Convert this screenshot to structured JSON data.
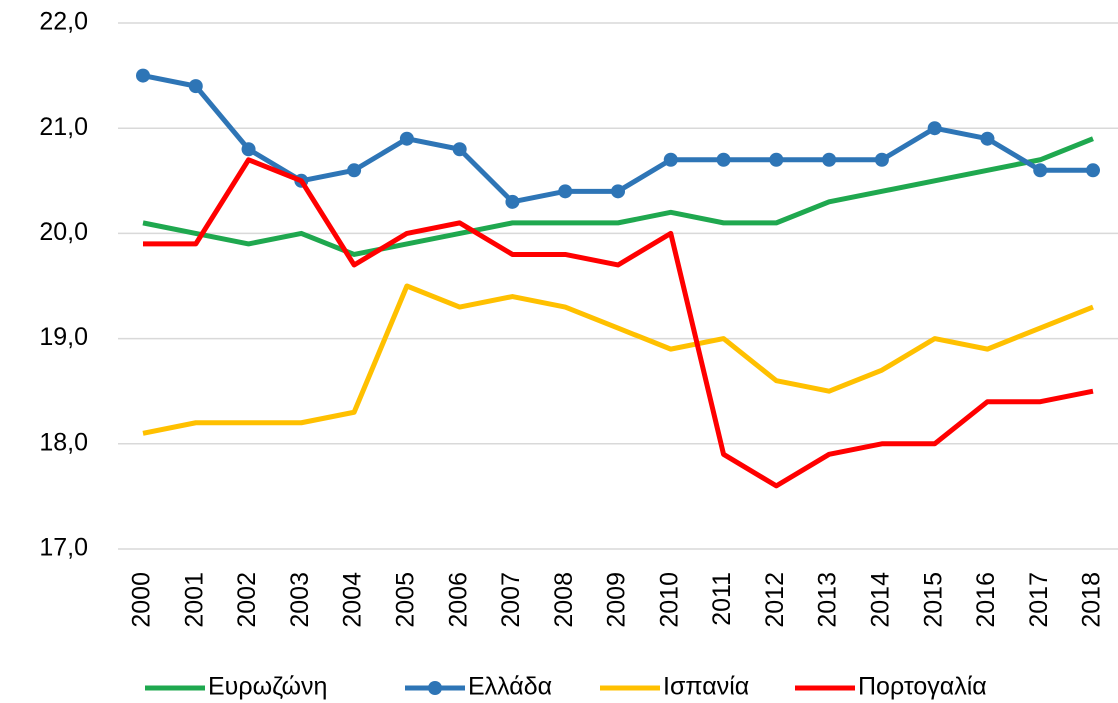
{
  "chart_data": {
    "type": "line",
    "categories": [
      "2000",
      "2001",
      "2002",
      "2003",
      "2004",
      "2005",
      "2006",
      "2007",
      "2008",
      "2009",
      "2010",
      "2011",
      "2012",
      "2013",
      "2014",
      "2015",
      "2016",
      "2017",
      "2018"
    ],
    "series": [
      {
        "name": "Ευρωζώνη",
        "color": "#1fa84f",
        "values": [
          20.1,
          20.0,
          19.9,
          20.0,
          19.8,
          19.9,
          20.0,
          20.1,
          20.1,
          20.1,
          20.2,
          20.1,
          20.1,
          20.3,
          20.4,
          20.5,
          20.6,
          20.7,
          20.9
        ]
      },
      {
        "name": "Ελλάδα",
        "color": "#2e75b6",
        "markers": true,
        "values": [
          21.5,
          21.4,
          20.8,
          20.5,
          20.6,
          20.9,
          20.8,
          20.3,
          20.4,
          20.4,
          20.7,
          20.7,
          20.7,
          20.7,
          20.7,
          21.0,
          20.9,
          20.6,
          20.6
        ]
      },
      {
        "name": "Ισπανία",
        "color": "#ffc000",
        "values": [
          18.1,
          18.2,
          18.2,
          18.2,
          18.3,
          19.5,
          19.3,
          19.4,
          19.3,
          19.1,
          18.9,
          19.0,
          18.6,
          18.5,
          18.7,
          19.0,
          18.9,
          19.1,
          19.3
        ]
      },
      {
        "name": "Πορτογαλία",
        "color": "#ff0000",
        "values": [
          19.9,
          19.9,
          20.7,
          20.5,
          19.7,
          20.0,
          20.1,
          19.8,
          19.8,
          19.7,
          20.0,
          17.9,
          17.6,
          17.9,
          18.0,
          18.0,
          18.4,
          18.4,
          18.5
        ]
      }
    ],
    "ylim": [
      17,
      22
    ],
    "yticks": [
      {
        "value": 17,
        "label": "17,0"
      },
      {
        "value": 18,
        "label": "18,0"
      },
      {
        "value": 19,
        "label": "19,0"
      },
      {
        "value": 20,
        "label": "20,0"
      },
      {
        "value": 21,
        "label": "21,0"
      },
      {
        "value": 22,
        "label": "22,0"
      }
    ],
    "grid": true,
    "legend": "bottom"
  }
}
